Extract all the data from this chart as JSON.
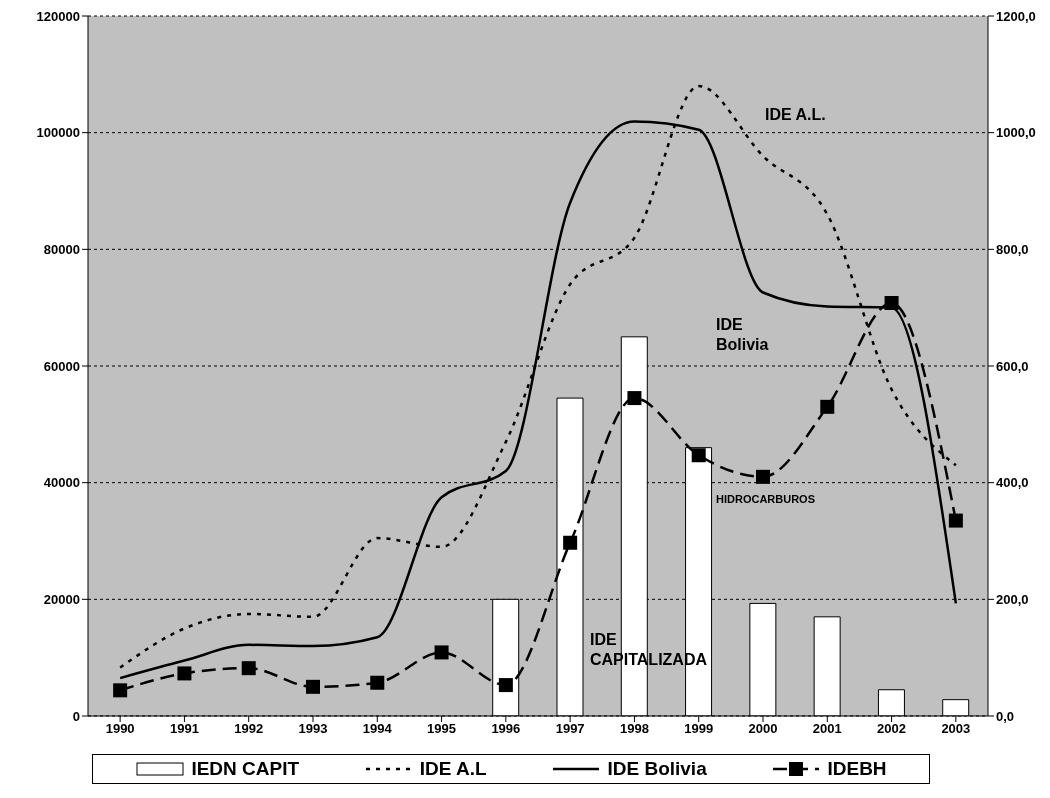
{
  "chart_data": {
    "type": "line",
    "categories": [
      "1990",
      "1991",
      "1992",
      "1993",
      "1994",
      "1995",
      "1996",
      "1997",
      "1998",
      "1999",
      "2000",
      "2001",
      "2002",
      "2003"
    ],
    "series": [
      {
        "name": "IEDN CAPIT",
        "type": "bar",
        "axis": "y2",
        "color": "#ffffff",
        "values": [
          null,
          null,
          null,
          null,
          null,
          null,
          200,
          545,
          650,
          460,
          193,
          170,
          45,
          28
        ]
      },
      {
        "name": "IDE A.L",
        "color": "#000000",
        "line_style": "dotted",
        "marker": "none",
        "values": [
          8300,
          15000,
          17500,
          17000,
          30500,
          29000,
          47000,
          74000,
          82000,
          108000,
          96000,
          86000,
          56000,
          43000
        ]
      },
      {
        "name": "IDE Bolivia",
        "axis": "y2",
        "color": "#000000",
        "line_style": "solid",
        "marker": "none",
        "values": [
          65,
          95,
          122,
          120,
          135,
          375,
          420,
          880,
          1019,
          1005,
          726,
          702,
          700,
          193
        ]
      },
      {
        "name": "IDEBH",
        "axis": "y2",
        "color": "#000000",
        "line_style": "dashed",
        "marker": "square",
        "values": [
          44,
          73,
          82,
          50,
          57,
          109,
          53,
          297,
          545,
          447,
          410,
          530,
          708,
          335
        ]
      }
    ],
    "ylim": [
      0,
      120000
    ],
    "yticks": [
      0,
      20000,
      40000,
      60000,
      80000,
      100000,
      120000
    ],
    "y2lim": [
      0,
      1200
    ],
    "y2ticks": [
      {
        "value": 0,
        "label": "0,0"
      },
      {
        "value": 200,
        "label": "200,0"
      },
      {
        "value": 400,
        "label": "400,0"
      },
      {
        "value": 600,
        "label": "600,0"
      },
      {
        "value": 800,
        "label": "800,0"
      },
      {
        "value": 1000,
        "label": "1000,0"
      },
      {
        "value": 1200,
        "label": "1200,0"
      }
    ],
    "grid": "y",
    "legend": "bottom",
    "annotations": [
      "IDE A.L.",
      "IDE Bolivia",
      "HIDROCARBUROS",
      "IDE CAPITALIZADA"
    ]
  }
}
